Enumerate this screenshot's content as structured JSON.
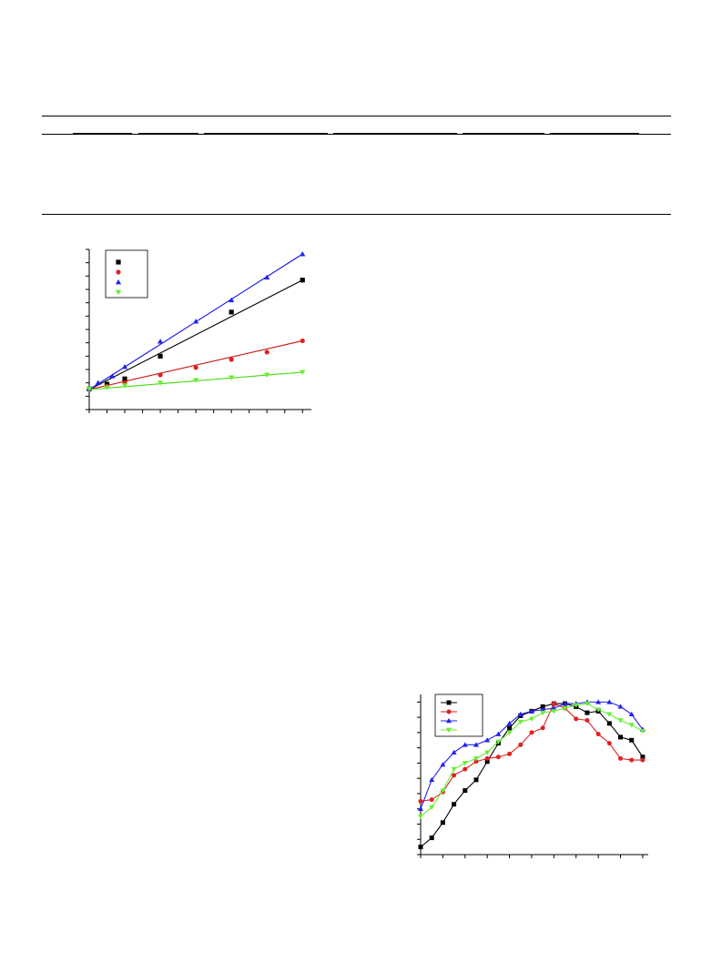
{
  "page": {
    "background": "#ffffff"
  },
  "table": {
    "rule_color": "#000000",
    "column_count": 6
  },
  "chart_data": [
    {
      "type": "scatter",
      "title": "",
      "xlabel": "",
      "ylabel": "",
      "fit_lines": true,
      "legend_position": "top-left",
      "xlim": [
        0,
        12.5
      ],
      "ylim": [
        0,
        12
      ],
      "x_ticks": [
        0,
        1,
        2,
        3,
        4,
        5,
        6,
        7,
        8,
        9,
        10,
        11,
        12
      ],
      "y_ticks": [
        0,
        1,
        2,
        3,
        4,
        5,
        6,
        7,
        8,
        9,
        10,
        11,
        12
      ],
      "series": [
        {
          "marker": "square",
          "color": "#000000",
          "line_color": "#000000",
          "x": [
            0,
            1,
            2,
            4,
            8,
            12
          ],
          "y": [
            1.55,
            1.9,
            2.3,
            4.0,
            7.3,
            9.7
          ],
          "fit": [
            1.5,
            9.7
          ]
        },
        {
          "marker": "circle",
          "color": "#dd2222",
          "line_color": "#cc1111",
          "x": [
            0,
            1,
            2,
            4,
            6,
            8,
            10,
            12
          ],
          "y": [
            1.55,
            1.75,
            2.0,
            2.6,
            3.15,
            3.75,
            4.3,
            5.15
          ],
          "fit": [
            1.5,
            5.15
          ]
        },
        {
          "marker": "triangle-up",
          "color": "#2222ee",
          "line_color": "#1111ee",
          "x": [
            0,
            0.5,
            1.3,
            2,
            4,
            6,
            8,
            10,
            12
          ],
          "y": [
            1.55,
            2.0,
            2.5,
            3.2,
            5.1,
            6.6,
            8.2,
            9.9,
            11.65
          ],
          "fit": [
            1.5,
            11.65
          ]
        },
        {
          "marker": "triangle-down",
          "color": "#66ee33",
          "line_color": "#44dd11",
          "x": [
            0,
            1,
            2,
            4,
            6,
            8,
            10,
            12
          ],
          "y": [
            1.55,
            1.65,
            1.8,
            2.0,
            2.2,
            2.4,
            2.6,
            2.8
          ],
          "fit": [
            1.5,
            2.8
          ]
        }
      ]
    },
    {
      "type": "line",
      "title": "",
      "xlabel": "",
      "ylabel": "",
      "legend_position": "top-left",
      "xlim": [
        0,
        20.5
      ],
      "ylim": [
        0,
        10.5
      ],
      "x_ticks": [
        0,
        2,
        4,
        6,
        8,
        10,
        12,
        14,
        16,
        18,
        20
      ],
      "y_ticks": [
        0,
        1,
        2,
        3,
        4,
        5,
        6,
        7,
        8,
        9,
        10
      ],
      "x": [
        0,
        1,
        2,
        3,
        4,
        5,
        6,
        7,
        8,
        9,
        10,
        11,
        12,
        13,
        14,
        15,
        16,
        17,
        18,
        19,
        20
      ],
      "series": [
        {
          "marker": "square",
          "color": "#000000",
          "y": [
            0.5,
            1.1,
            2.1,
            3.3,
            4.2,
            4.9,
            6.1,
            7.3,
            8.3,
            9.1,
            9.4,
            9.7,
            9.9,
            9.9,
            9.7,
            9.3,
            9.4,
            8.6,
            7.7,
            7.5,
            6.4
          ]
        },
        {
          "marker": "circle",
          "color": "#dd2222",
          "y": [
            3.5,
            3.6,
            4.1,
            5.2,
            5.6,
            6.1,
            6.3,
            6.4,
            6.6,
            7.2,
            8.0,
            8.3,
            9.9,
            9.6,
            8.9,
            8.8,
            7.9,
            7.3,
            6.3,
            6.2,
            6.2
          ]
        },
        {
          "marker": "triangle-up",
          "color": "#2222ee",
          "y": [
            3.0,
            4.9,
            5.9,
            6.7,
            7.2,
            7.2,
            7.5,
            7.9,
            8.6,
            9.2,
            9.4,
            9.5,
            9.6,
            9.9,
            9.9,
            10.0,
            10.0,
            10.0,
            9.7,
            9.2,
            8.2
          ]
        },
        {
          "marker": "triangle-down",
          "color": "#66ee33",
          "y": [
            2.5,
            3.1,
            4.2,
            5.6,
            6.0,
            6.3,
            6.7,
            7.4,
            8.0,
            8.7,
            8.9,
            9.3,
            9.4,
            9.6,
            9.8,
            9.9,
            9.5,
            9.2,
            8.8,
            8.5,
            8.1
          ]
        }
      ]
    }
  ]
}
